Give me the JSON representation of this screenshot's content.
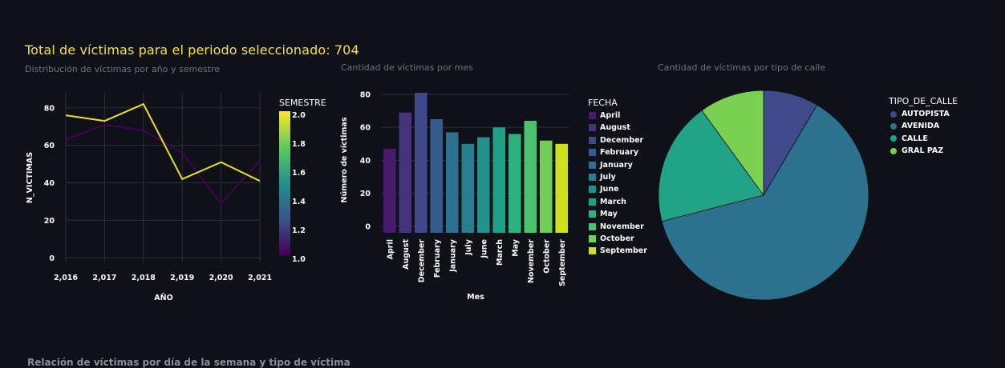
{
  "headline": "Total de víctimas para el periodo seleccionado: 704",
  "bottom_title": "Relación de víctimas por día de la semana y tipo de víctima",
  "colors": {
    "background": "#0e1117",
    "headline": "#f7e23c",
    "grid": "#2a2e39"
  },
  "charts": [
    {
      "panel_title": "Distribución de víctimas por año y semestre",
      "legend_title": "SEMESTRE",
      "colorbar_ticks": [
        "2.0",
        "1.8",
        "1.6",
        "1.4",
        "1.2",
        "1.0"
      ]
    },
    {
      "panel_title": "Cantidad de víctimas por mes",
      "legend_title": "FECHA"
    },
    {
      "panel_title": "Cantidad de víctimas por tipo de calle",
      "legend_title": "TIPO_DE_CALLE"
    }
  ],
  "chart_data": [
    {
      "type": "line",
      "xlabel": "AÑO",
      "ylabel": "N_VICTIMAS",
      "x": [
        2016,
        2017,
        2018,
        2019,
        2020,
        2021
      ],
      "x_tick_labels": [
        "2,016",
        "2,017",
        "2,018",
        "2,019",
        "2,020",
        "2,021"
      ],
      "y_ticks": [
        0,
        20,
        40,
        60,
        80
      ],
      "ylim": [
        -2,
        88
      ],
      "grid": true,
      "legend": "colorbar right",
      "series": [
        {
          "name": "1",
          "color": "#440154",
          "values": [
            63,
            71,
            68,
            56,
            29,
            52
          ]
        },
        {
          "name": "2",
          "color": "#f0dd1e",
          "values": [
            76,
            73,
            82,
            42,
            51,
            41
          ]
        }
      ]
    },
    {
      "type": "bar",
      "xlabel": "Mes",
      "ylabel": "Número de víctimas",
      "categories": [
        "April",
        "August",
        "December",
        "February",
        "January",
        "July",
        "June",
        "March",
        "May",
        "November",
        "October",
        "September"
      ],
      "values": [
        47,
        69,
        81,
        65,
        57,
        50,
        54,
        60,
        56,
        64,
        52,
        50
      ],
      "colors": [
        "#481a6c",
        "#46337e",
        "#3f4889",
        "#365c8d",
        "#2e6e8e",
        "#277f8e",
        "#21918c",
        "#1fa187",
        "#2db27d",
        "#4ac16d",
        "#71cf57",
        "#cde11d"
      ],
      "y_ticks": [
        0,
        20,
        40,
        60,
        80
      ],
      "ylim": [
        -4,
        81
      ],
      "grid": true,
      "legend": "right"
    },
    {
      "type": "pie",
      "categories": [
        "AUTOPISTA",
        "AVENIDA",
        "CALLE",
        "GRAL PAZ"
      ],
      "values": [
        8.5,
        62.5,
        19.0,
        10.0
      ],
      "colors": [
        "#3e4a89",
        "#2c728e",
        "#20a386",
        "#7ad151"
      ],
      "legend": "right"
    }
  ]
}
